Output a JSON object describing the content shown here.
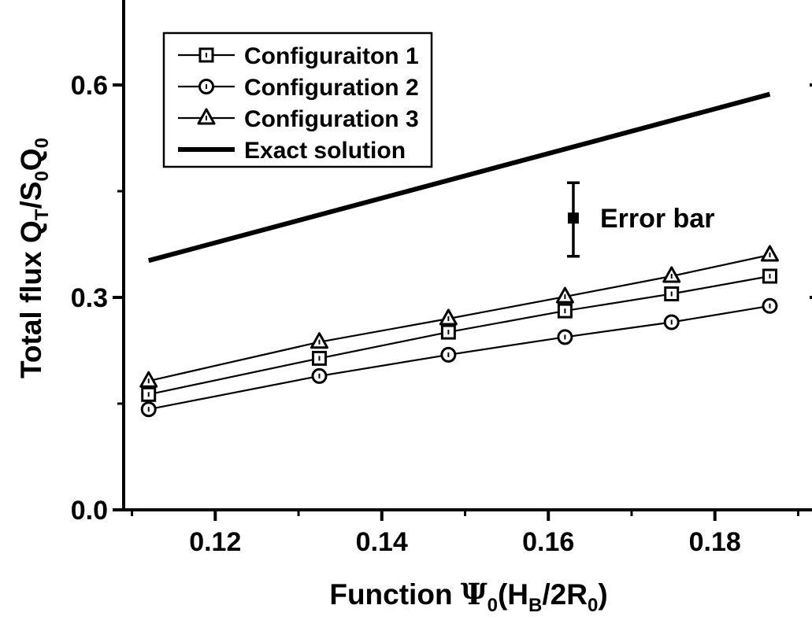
{
  "chart_data": {
    "type": "line",
    "xlabel": {
      "prefix": "Function ",
      "psi": "Ψ",
      "sub0": "0",
      "open": "(H",
      "subB": "B",
      "mid": "/2R",
      "sub0b": "0",
      "close": ")"
    },
    "ylabel": {
      "prefix": "Total flux Q",
      "subT": "T",
      "slash": "/S",
      "sub0a": "0",
      "q": "Q",
      "sub0b": "0"
    },
    "xlim": [
      0.109,
      0.191
    ],
    "ylim": [
      0.0,
      0.72
    ],
    "x_ticks": [
      "0.12",
      "0.14",
      "0.16",
      "0.18"
    ],
    "x_tick_values": [
      0.12,
      0.14,
      0.16,
      0.18
    ],
    "y_ticks": [
      "0.0",
      "0.3",
      "0.6"
    ],
    "y_tick_values": [
      0.0,
      0.3,
      0.6
    ],
    "x": [
      0.112,
      0.1325,
      0.148,
      0.162,
      0.1748,
      0.1866
    ],
    "series": [
      {
        "name": "Configuraiton 1",
        "marker": "square",
        "values": [
          0.163,
          0.214,
          0.251,
          0.281,
          0.305,
          0.33
        ]
      },
      {
        "name": "Configuration 2",
        "marker": "circle",
        "values": [
          0.142,
          0.189,
          0.219,
          0.244,
          0.265,
          0.288
        ]
      },
      {
        "name": "Configuration 3",
        "marker": "triangle",
        "values": [
          0.182,
          0.237,
          0.27,
          0.301,
          0.33,
          0.36
        ]
      },
      {
        "name": "Exact solution",
        "marker": "none",
        "x": [
          0.112,
          0.1866
        ],
        "values": [
          0.352,
          0.587
        ]
      }
    ],
    "annotation": {
      "text": "Error bar",
      "x": 0.163,
      "y": 0.412,
      "low": 0.358,
      "high": 0.462
    },
    "legend_position": "top-left",
    "grid": false,
    "color": "#000000"
  }
}
